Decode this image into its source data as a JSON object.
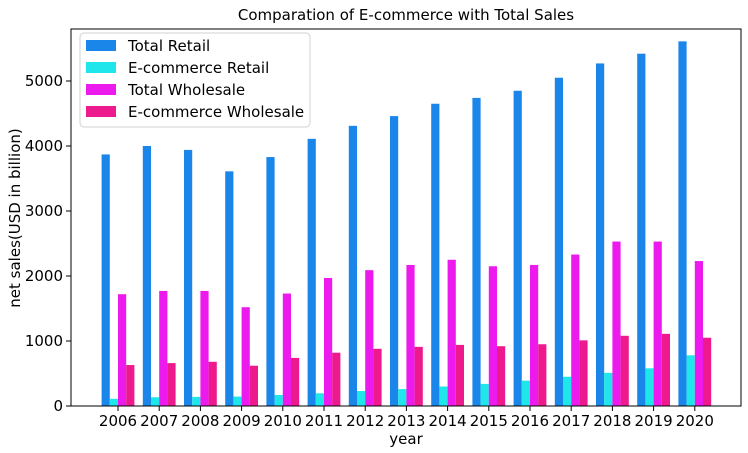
{
  "chart_data": {
    "type": "bar",
    "title": "Comparation of E-commerce with Total Sales",
    "xlabel": "year",
    "ylabel": "net sales(USD in billion)",
    "categories": [
      "2006",
      "2007",
      "2008",
      "2009",
      "2010",
      "2011",
      "2012",
      "2013",
      "2014",
      "2015",
      "2016",
      "2017",
      "2018",
      "2019",
      "2020"
    ],
    "ylim": [
      0,
      5800
    ],
    "yticks": [
      0,
      1000,
      2000,
      3000,
      4000,
      5000
    ],
    "grid": false,
    "legend_position": "top-left",
    "series": [
      {
        "name": "Total Retail",
        "color": "#1a86ea",
        "values": [
          3870,
          4000,
          3940,
          3610,
          3830,
          4110,
          4310,
          4460,
          4650,
          4740,
          4850,
          5050,
          5270,
          5420,
          5610
        ]
      },
      {
        "name": "E-commerce Retail",
        "color": "#1fe6ea",
        "values": [
          110,
          135,
          140,
          145,
          170,
          195,
          230,
          260,
          300,
          340,
          390,
          450,
          510,
          580,
          780
        ]
      },
      {
        "name": "Total Wholesale",
        "color": "#ec1aed",
        "values": [
          1720,
          1770,
          1770,
          1520,
          1730,
          1970,
          2090,
          2170,
          2250,
          2150,
          2170,
          2330,
          2530,
          2530,
          2230
        ]
      },
      {
        "name": "E-commerce Wholesale",
        "color": "#ec1a8c",
        "values": [
          630,
          660,
          680,
          620,
          740,
          820,
          880,
          910,
          940,
          920,
          950,
          1010,
          1080,
          1110,
          1050
        ]
      }
    ]
  }
}
